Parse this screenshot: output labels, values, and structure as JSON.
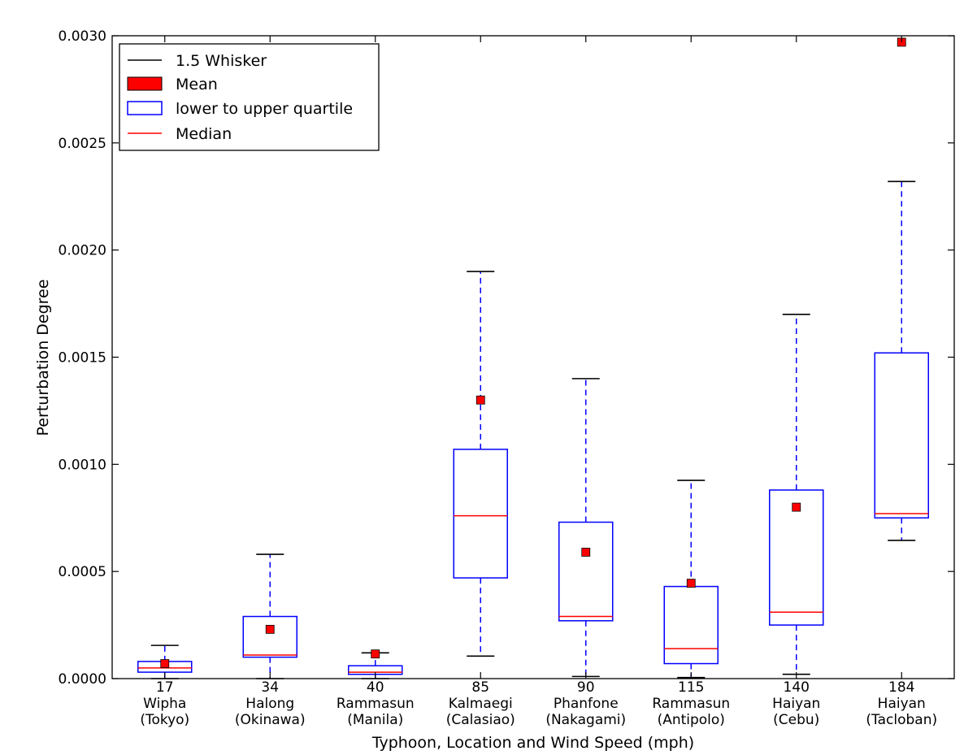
{
  "chart_data": {
    "type": "box",
    "title": "",
    "xlabel": "Typhoon, Location and Wind Speed (mph)",
    "ylabel": "Perturbation Degree",
    "ylim": [
      0,
      0.003
    ],
    "yticks": [
      "0.0000",
      "0.0005",
      "0.0010",
      "0.0015",
      "0.0020",
      "0.0025",
      "0.0030"
    ],
    "ytick_values": [
      0,
      0.0005,
      0.001,
      0.0015,
      0.002,
      0.0025,
      0.003
    ],
    "grid": false,
    "legend_position": "top-left",
    "legend": [
      {
        "label": "1.5 Whisker",
        "symbol": "line",
        "color": "#000000"
      },
      {
        "label": "Mean",
        "symbol": "filled-box",
        "color": "#ff0000"
      },
      {
        "label": "lower to upper quartile",
        "symbol": "open-box",
        "color": "#0000ff"
      },
      {
        "label": "Median",
        "symbol": "line",
        "color": "#ff0000"
      }
    ],
    "colors": {
      "box": "#0000ff",
      "median": "#ff0000",
      "mean": "#ff0000",
      "whisker_cap": "#000000",
      "whisker": "#0000ff"
    },
    "categories": [
      {
        "speed": "17",
        "name": "Wipha",
        "location": "(Tokyo)"
      },
      {
        "speed": "34",
        "name": "Halong",
        "location": "(Okinawa)"
      },
      {
        "speed": "40",
        "name": "Rammasun",
        "location": "(Manila)"
      },
      {
        "speed": "85",
        "name": "Kalmaegi",
        "location": "(Calasiao)"
      },
      {
        "speed": "90",
        "name": "Phanfone",
        "location": "(Nakagami)"
      },
      {
        "speed": "115",
        "name": "Rammasun",
        "location": "(Antipolo)"
      },
      {
        "speed": "140",
        "name": "Haiyan",
        "location": "(Cebu)"
      },
      {
        "speed": "184",
        "name": "Haiyan",
        "location": "(Tacloban)"
      }
    ],
    "boxes": [
      {
        "whisker_low": 0.0,
        "q1": 3e-05,
        "median": 5e-05,
        "q3": 8e-05,
        "whisker_high": 0.000155,
        "mean": 7e-05
      },
      {
        "whisker_low": 0.0,
        "q1": 0.0001,
        "median": 0.00011,
        "q3": 0.00029,
        "whisker_high": 0.00058,
        "mean": 0.00023
      },
      {
        "whisker_low": 0.0,
        "q1": 2e-05,
        "median": 3e-05,
        "q3": 6e-05,
        "whisker_high": 0.00012,
        "mean": 0.000115
      },
      {
        "whisker_low": 0.000105,
        "q1": 0.00047,
        "median": 0.00076,
        "q3": 0.00107,
        "whisker_high": 0.0019,
        "mean": 0.0013
      },
      {
        "whisker_low": 1e-05,
        "q1": 0.00027,
        "median": 0.00029,
        "q3": 0.00073,
        "whisker_high": 0.0014,
        "mean": 0.00059
      },
      {
        "whisker_low": 5e-06,
        "q1": 7e-05,
        "median": 0.00014,
        "q3": 0.00043,
        "whisker_high": 0.000925,
        "mean": 0.000445
      },
      {
        "whisker_low": 2e-05,
        "q1": 0.00025,
        "median": 0.00031,
        "q3": 0.00088,
        "whisker_high": 0.0017,
        "mean": 0.0008
      },
      {
        "whisker_low": 0.000645,
        "q1": 0.00075,
        "median": 0.00077,
        "q3": 0.00152,
        "whisker_high": 0.00232,
        "mean": 0.00297
      }
    ]
  }
}
